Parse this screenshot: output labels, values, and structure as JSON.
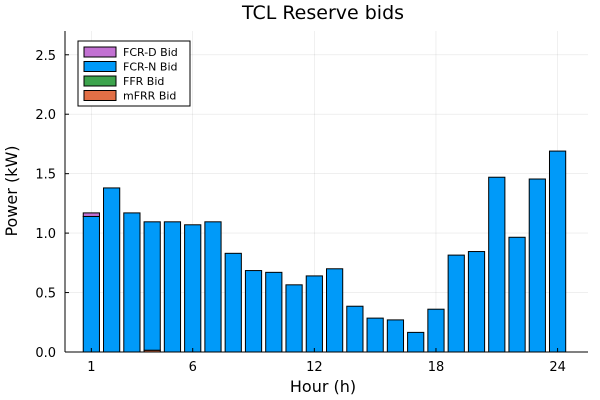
{
  "chart_data": {
    "type": "bar",
    "title": "TCL Reserve bids",
    "xlabel": "Hour (h)",
    "ylabel": "Power (kW)",
    "x": [
      1,
      2,
      3,
      4,
      5,
      6,
      7,
      8,
      9,
      10,
      11,
      12,
      13,
      14,
      15,
      16,
      17,
      18,
      19,
      20,
      21,
      22,
      23,
      24
    ],
    "x_ticks": [
      "1",
      "6",
      "12",
      "18",
      "24"
    ],
    "y_ticks": [
      "0.0",
      "0.5",
      "1.0",
      "1.5",
      "2.0",
      "2.5"
    ],
    "ylim": [
      0,
      2.7
    ],
    "xlim": [
      -0.3,
      25.5
    ],
    "stacked": true,
    "grid": true,
    "legend_position": "top-left",
    "series": [
      {
        "name": "FCR-D Bid",
        "color": "#c271d2",
        "values": [
          0.03,
          0,
          0,
          0,
          0,
          0,
          0,
          0,
          0,
          0,
          0,
          0,
          0,
          0,
          0,
          0,
          0,
          0,
          0,
          0,
          0,
          0,
          0,
          0
        ]
      },
      {
        "name": "FCR-N Bid",
        "color": "#009af9",
        "values": [
          1.14,
          1.38,
          1.17,
          1.08,
          1.095,
          1.07,
          1.095,
          0.83,
          0.685,
          0.67,
          0.565,
          0.64,
          0.7,
          0.385,
          0.285,
          0.27,
          0.165,
          0.36,
          0.815,
          0.845,
          1.47,
          0.965,
          1.455,
          1.69
        ]
      },
      {
        "name": "FFR Bid",
        "color": "#3da44d",
        "values": [
          0,
          0,
          0,
          0,
          0,
          0,
          0,
          0,
          0,
          0,
          0,
          0,
          0,
          0,
          0,
          0,
          0,
          0,
          0,
          0,
          0,
          0,
          0,
          0
        ]
      },
      {
        "name": "mFRR Bid",
        "color": "#e26f46",
        "values": [
          0,
          0,
          0,
          0.015,
          0,
          0,
          0,
          0,
          0,
          0,
          0,
          0,
          0,
          0,
          0,
          0,
          0,
          0,
          0,
          0,
          0,
          0,
          0,
          0
        ]
      }
    ]
  }
}
